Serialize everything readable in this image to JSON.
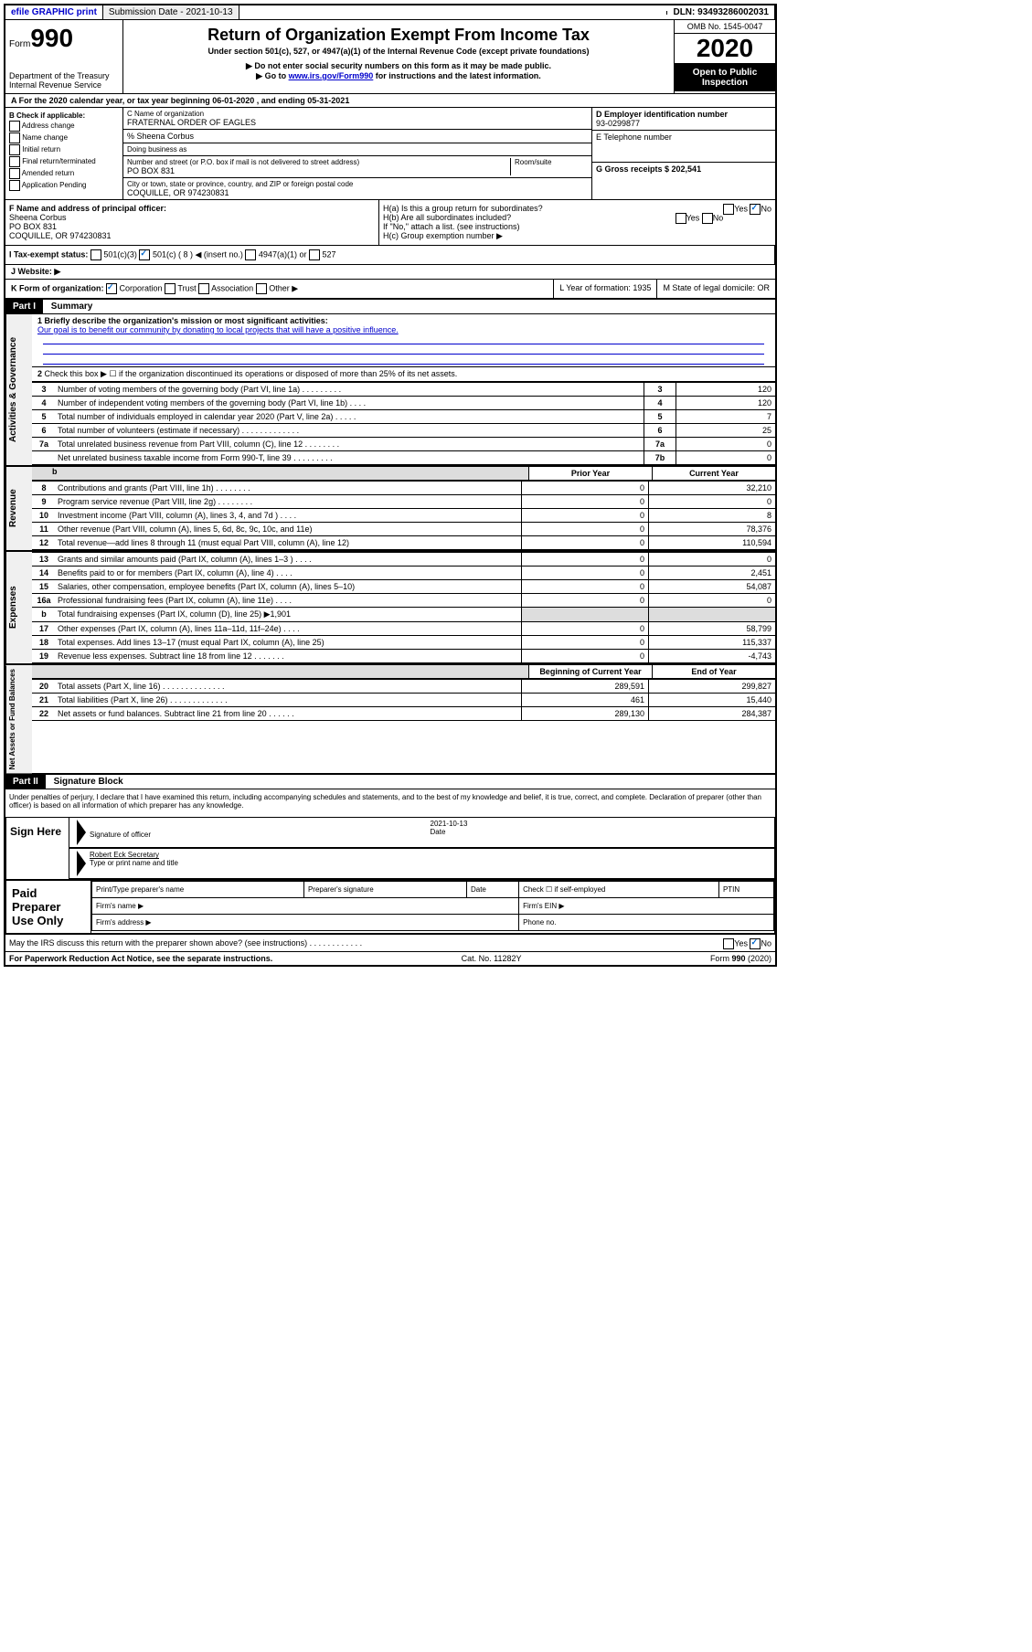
{
  "topbar": {
    "efile": "efile GRAPHIC print",
    "submission": "Submission Date - 2021-10-13",
    "dln": "DLN: 93493286002031"
  },
  "header": {
    "form_label": "Form",
    "form_number": "990",
    "dept": "Department of the Treasury",
    "irs": "Internal Revenue Service",
    "title": "Return of Organization Exempt From Income Tax",
    "subtitle": "Under section 501(c), 527, or 4947(a)(1) of the Internal Revenue Code (except private foundations)",
    "note1": "▶ Do not enter social security numbers on this form as it may be made public.",
    "note2_pre": "▶ Go to ",
    "note2_link": "www.irs.gov/Form990",
    "note2_post": " for instructions and the latest information.",
    "omb": "OMB No. 1545-0047",
    "year": "2020",
    "inspection": "Open to Public Inspection"
  },
  "row_a": "A For the 2020 calendar year, or tax year beginning 06-01-2020   , and ending 05-31-2021",
  "checkboxes_b": {
    "title": "B Check if applicable:",
    "items": [
      "Address change",
      "Name change",
      "Initial return",
      "Final return/terminated",
      "Amended return",
      "Application Pending"
    ]
  },
  "org": {
    "name_label": "C Name of organization",
    "name": "FRATERNAL ORDER OF EAGLES",
    "care_of": "% Sheena Corbus",
    "dba_label": "Doing business as",
    "street_label": "Number and street (or P.O. box if mail is not delivered to street address)",
    "room_label": "Room/suite",
    "street": "PO BOX 831",
    "city_label": "City or town, state or province, country, and ZIP or foreign postal code",
    "city": "COQUILLE, OR  974230831"
  },
  "right_col": {
    "ein_label": "D Employer identification number",
    "ein": "93-0299877",
    "phone_label": "E Telephone number",
    "gross_label": "G Gross receipts $ 202,541"
  },
  "officer": {
    "label": "F  Name and address of principal officer:",
    "name": "Sheena Corbus",
    "addr1": "PO BOX 831",
    "addr2": "COQUILLE, OR  974230831"
  },
  "h_section": {
    "ha": "H(a)  Is this a group return for subordinates?",
    "hb": "H(b)  Are all subordinates included?",
    "hb_note": "If \"No,\" attach a list. (see instructions)",
    "hc": "H(c)  Group exemption number ▶",
    "yes": "Yes",
    "no": "No"
  },
  "tax_status": {
    "label": "I  Tax-exempt status:",
    "opt1": "501(c)(3)",
    "opt2": "501(c) ( 8 ) ◀ (insert no.)",
    "opt3": "4947(a)(1) or",
    "opt4": "527"
  },
  "website": "J  Website: ▶",
  "row_k": {
    "k_label": "K Form of organization:",
    "corp": "Corporation",
    "trust": "Trust",
    "assoc": "Association",
    "other": "Other ▶",
    "l": "L Year of formation: 1935",
    "m": "M State of legal domicile: OR"
  },
  "part1": {
    "header": "Part I",
    "title": "Summary"
  },
  "sections": {
    "governance": "Activities & Governance",
    "revenue": "Revenue",
    "expenses": "Expenses",
    "net": "Net Assets or Fund Balances"
  },
  "governance": {
    "q1": "1  Briefly describe the organization's mission or most significant activities:",
    "mission": "Our goal is to benefit our community by donating to local projects that will have a positive influence.",
    "q2": "Check this box ▶ ☐  if the organization discontinued its operations or disposed of more than 25% of its net assets.",
    "rows": [
      {
        "n": "3",
        "desc": "Number of voting members of the governing body (Part VI, line 1a)   .   .   .   .   .   .   .   .   .",
        "box": "3",
        "val": "120"
      },
      {
        "n": "4",
        "desc": "Number of independent voting members of the governing body (Part VI, line 1b)   .   .   .   .",
        "box": "4",
        "val": "120"
      },
      {
        "n": "5",
        "desc": "Total number of individuals employed in calendar year 2020 (Part V, line 2a)   .   .   .   .   .",
        "box": "5",
        "val": "7"
      },
      {
        "n": "6",
        "desc": "Total number of volunteers (estimate if necessary)   .   .   .   .   .   .   .   .   .   .   .   .   .",
        "box": "6",
        "val": "25"
      },
      {
        "n": "7a",
        "desc": "Total unrelated business revenue from Part VIII, column (C), line 12   .   .   .   .   .   .   .   .",
        "box": "7a",
        "val": "0"
      },
      {
        "n": "",
        "desc": "Net unrelated business taxable income from Form 990-T, line 39   .   .   .   .   .   .   .   .   .",
        "box": "7b",
        "val": "0"
      }
    ]
  },
  "col_headers": {
    "prior": "Prior Year",
    "current": "Current Year"
  },
  "revenue_rows": [
    {
      "n": "8",
      "desc": "Contributions and grants (Part VIII, line 1h)   .   .   .   .   .   .   .   .",
      "v1": "0",
      "v2": "32,210"
    },
    {
      "n": "9",
      "desc": "Program service revenue (Part VIII, line 2g)   .   .   .   .   .   .   .   .",
      "v1": "0",
      "v2": "0"
    },
    {
      "n": "10",
      "desc": "Investment income (Part VIII, column (A), lines 3, 4, and 7d )   .   .   .   .",
      "v1": "0",
      "v2": "8"
    },
    {
      "n": "11",
      "desc": "Other revenue (Part VIII, column (A), lines 5, 6d, 8c, 9c, 10c, and 11e)",
      "v1": "0",
      "v2": "78,376"
    },
    {
      "n": "12",
      "desc": "Total revenue—add lines 8 through 11 (must equal Part VIII, column (A), line 12)",
      "v1": "0",
      "v2": "110,594"
    }
  ],
  "expense_rows": [
    {
      "n": "13",
      "desc": "Grants and similar amounts paid (Part IX, column (A), lines 1–3 )   .   .   .   .",
      "v1": "0",
      "v2": "0"
    },
    {
      "n": "14",
      "desc": "Benefits paid to or for members (Part IX, column (A), line 4)   .   .   .   .",
      "v1": "0",
      "v2": "2,451"
    },
    {
      "n": "15",
      "desc": "Salaries, other compensation, employee benefits (Part IX, column (A), lines 5–10)",
      "v1": "0",
      "v2": "54,087"
    },
    {
      "n": "16a",
      "desc": "Professional fundraising fees (Part IX, column (A), line 11e)   .   .   .   .",
      "v1": "0",
      "v2": "0"
    },
    {
      "n": "b",
      "desc": "Total fundraising expenses (Part IX, column (D), line 25) ▶1,901",
      "v1": "grey",
      "v2": "grey"
    },
    {
      "n": "17",
      "desc": "Other expenses (Part IX, column (A), lines 11a–11d, 11f–24e)   .   .   .   .",
      "v1": "0",
      "v2": "58,799"
    },
    {
      "n": "18",
      "desc": "Total expenses. Add lines 13–17 (must equal Part IX, column (A), line 25)",
      "v1": "0",
      "v2": "115,337"
    },
    {
      "n": "19",
      "desc": "Revenue less expenses. Subtract line 18 from line 12   .   .   .   .   .   .   .",
      "v1": "0",
      "v2": "-4,743"
    }
  ],
  "net_headers": {
    "begin": "Beginning of Current Year",
    "end": "End of Year"
  },
  "net_rows": [
    {
      "n": "20",
      "desc": "Total assets (Part X, line 16)   .   .   .   .   .   .   .   .   .   .   .   .   .   .",
      "v1": "289,591",
      "v2": "299,827"
    },
    {
      "n": "21",
      "desc": "Total liabilities (Part X, line 26)   .   .   .   .   .   .   .   .   .   .   .   .   .",
      "v1": "461",
      "v2": "15,440"
    },
    {
      "n": "22",
      "desc": "Net assets or fund balances. Subtract line 21 from line 20   .   .   .   .   .   .",
      "v1": "289,130",
      "v2": "284,387"
    }
  ],
  "part2": {
    "header": "Part II",
    "title": "Signature Block",
    "declaration": "Under penalties of perjury, I declare that I have examined this return, including accompanying schedules and statements, and to the best of my knowledge and belief, it is true, correct, and complete. Declaration of preparer (other than officer) is based on all information of which preparer has any knowledge."
  },
  "sign": {
    "label": "Sign Here",
    "sig_label": "Signature of officer",
    "date": "2021-10-13",
    "date_label": "Date",
    "name": "Robert Eck  Secretary",
    "name_label": "Type or print name and title"
  },
  "paid": {
    "label": "Paid Preparer Use Only",
    "print_name": "Print/Type preparer's name",
    "sig": "Preparer's signature",
    "date": "Date",
    "check": "Check ☐ if self-employed",
    "ptin": "PTIN",
    "firm_name": "Firm's name   ▶",
    "firm_ein": "Firm's EIN ▶",
    "firm_addr": "Firm's address ▶",
    "phone": "Phone no."
  },
  "irs_discuss": "May the IRS discuss this return with the preparer shown above? (see instructions)   .   .   .   .   .   .   .   .   .   .   .   .",
  "footer": {
    "left": "For Paperwork Reduction Act Notice, see the separate instructions.",
    "center": "Cat. No. 11282Y",
    "right": "Form 990 (2020)"
  }
}
